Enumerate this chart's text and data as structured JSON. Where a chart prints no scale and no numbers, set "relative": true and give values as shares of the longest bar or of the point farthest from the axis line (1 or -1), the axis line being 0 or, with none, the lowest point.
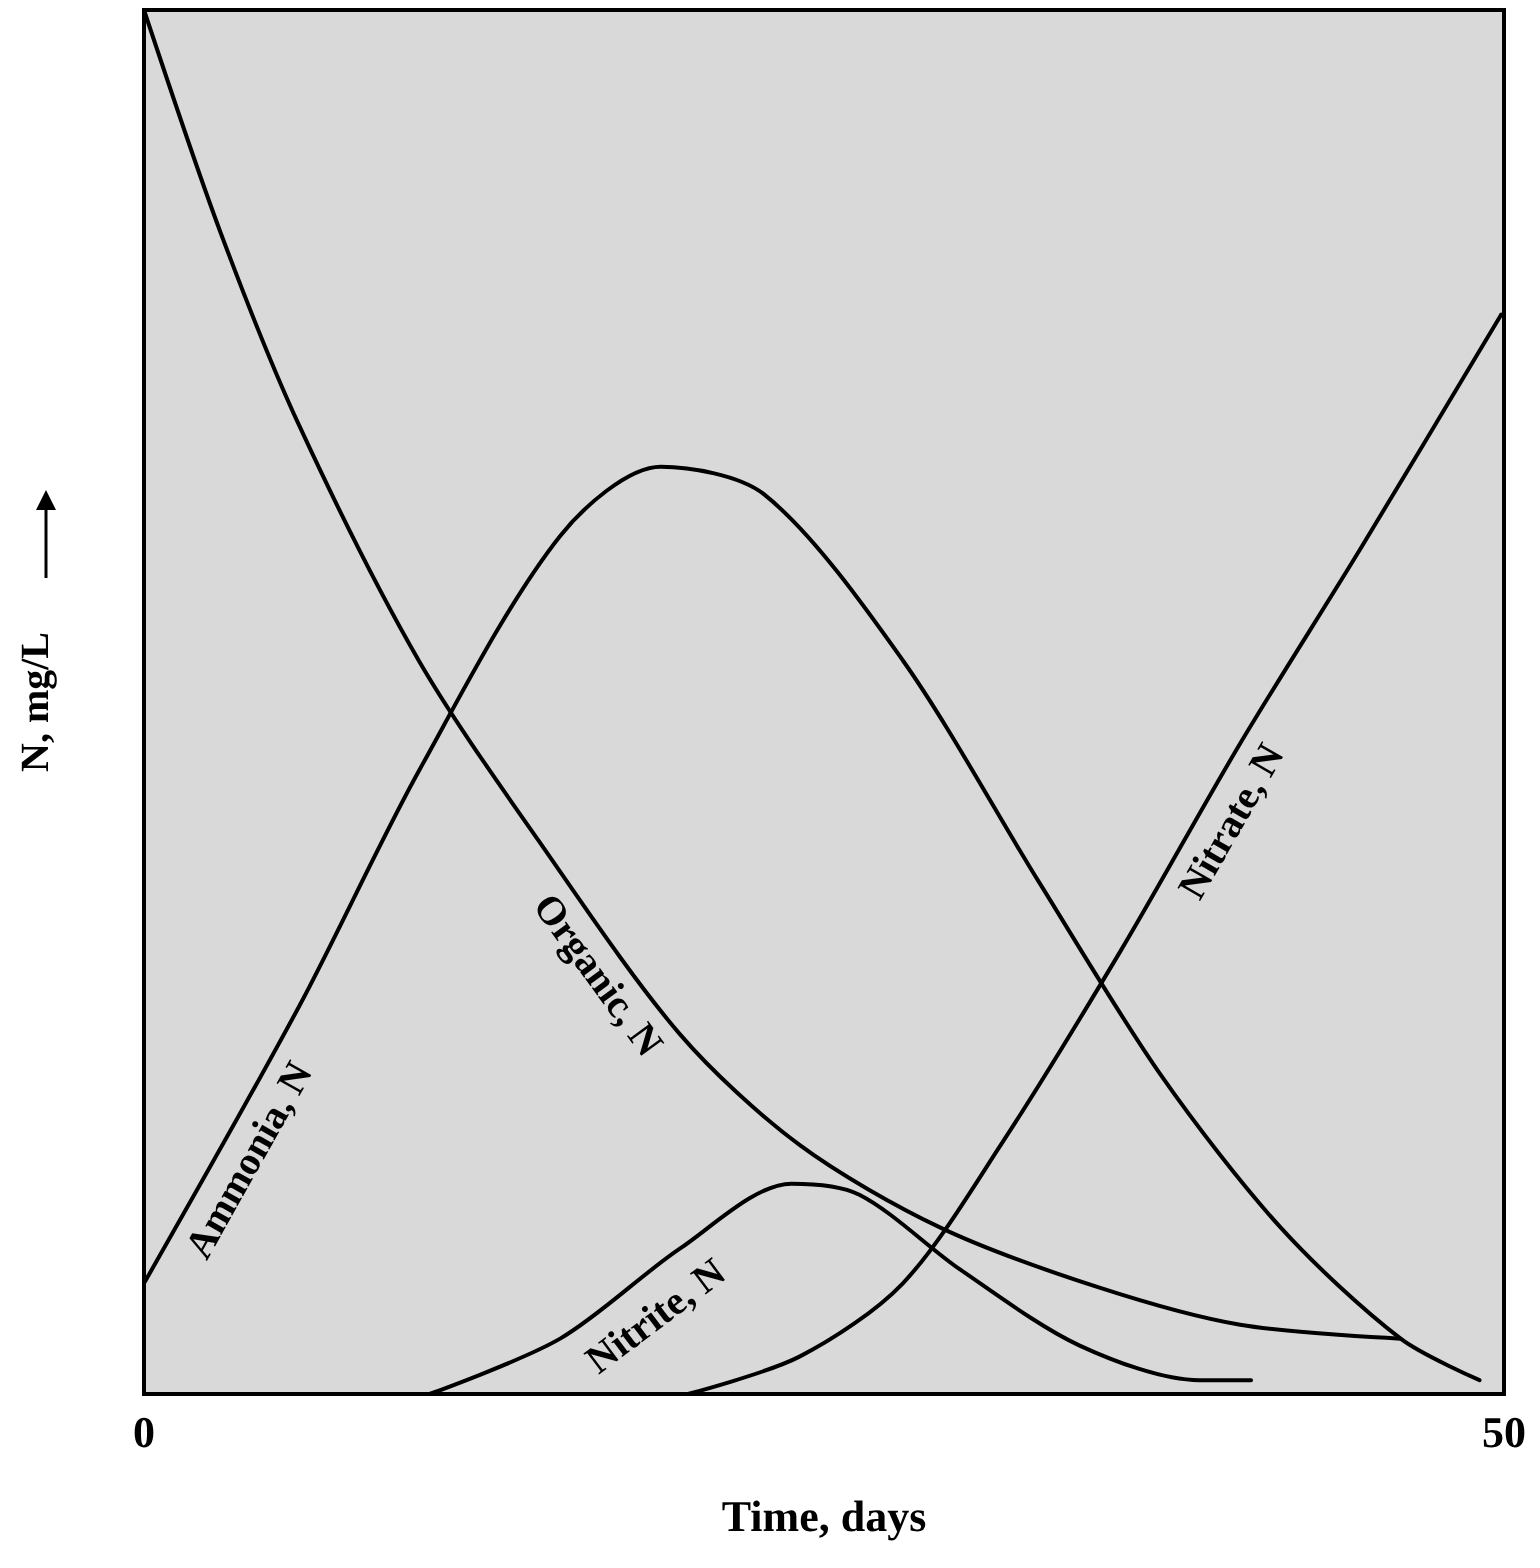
{
  "chart_data": {
    "type": "line",
    "xlabel": "Time, days",
    "ylabel": "N, mg/L",
    "relative": true,
    "xlim": [
      0,
      50
    ],
    "xticks": [
      0,
      50
    ],
    "grid": false,
    "legend": false,
    "marker": "none",
    "line_style": "solid",
    "series": [
      {
        "name": "Organic, N",
        "color": "#000000",
        "x": [
          0,
          2.8,
          5.7,
          10.1,
          14.5,
          19.7,
          24.1,
          29.3,
          35.1,
          40.3,
          46.2
        ],
        "values": [
          1.0,
          0.84,
          0.7,
          0.53,
          0.4,
          0.26,
          0.18,
          0.12,
          0.077,
          0.05,
          0.04
        ]
      },
      {
        "name": "Ammonia, N",
        "color": "#000000",
        "x": [
          0,
          5.7,
          10.1,
          15.3,
          19,
          22.8,
          27.9,
          32.9,
          37.4,
          41.8,
          46.2,
          49.1
        ],
        "values": [
          0.08,
          0.28,
          0.45,
          0.62,
          0.67,
          0.65,
          0.53,
          0.37,
          0.23,
          0.12,
          0.04,
          0.01
        ]
      },
      {
        "name": "Nitrite, N",
        "color": "#000000",
        "x": [
          10.5,
          15.3,
          19.7,
          23.8,
          26.3,
          30,
          34.4,
          38.8,
          40.7
        ],
        "values": [
          0,
          0.04,
          0.105,
          0.152,
          0.144,
          0.09,
          0.035,
          0.01,
          0.01
        ]
      },
      {
        "name": "Nitrate, N",
        "color": "#000000",
        "x": [
          20,
          24.1,
          27.9,
          31.5,
          35.9,
          40.3,
          44.7,
          49.9
        ],
        "values": [
          0,
          0.027,
          0.08,
          0.18,
          0.32,
          0.47,
          0.61,
          0.78
        ]
      }
    ]
  }
}
